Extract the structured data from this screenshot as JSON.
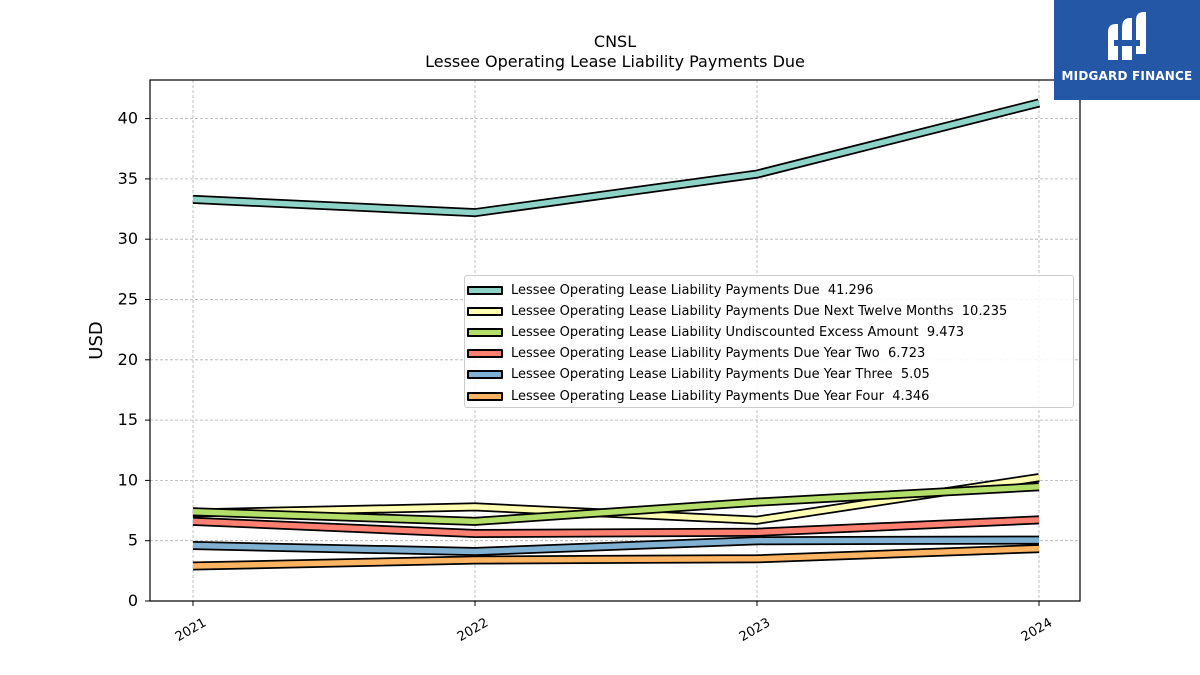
{
  "header": {
    "ticker": "CNSL",
    "subtitle": "Lessee Operating Lease Liability Payments Due"
  },
  "logo": {
    "text": "MIDGARD FINANCE",
    "color": "#2557a7"
  },
  "chart_data": {
    "type": "line",
    "title": "CNSL",
    "subtitle": "Lessee Operating Lease Liability Payments Due",
    "xlabel": "",
    "ylabel": "USD",
    "categories": [
      "2021",
      "2022",
      "2023",
      "2024"
    ],
    "ylim": [
      0,
      43.2
    ],
    "yticks": [
      0,
      5,
      10,
      15,
      20,
      25,
      30,
      35,
      40
    ],
    "grid": true,
    "legend_position": "center-right",
    "series": [
      {
        "name": "Lessee Operating Lease Liability Payments Due",
        "last_value": "41.296",
        "values": [
          33.3,
          32.2,
          35.4,
          41.296
        ],
        "color": "#8dd3c7"
      },
      {
        "name": "Lessee Operating Lease Liability Payments Due Next Twelve Months",
        "last_value": "10.235",
        "values": [
          7.3,
          7.8,
          6.7,
          10.235
        ],
        "color": "#ffffb3"
      },
      {
        "name": "Lessee Operating Lease Liability Undiscounted Excess Amount",
        "last_value": "9.473",
        "values": [
          7.4,
          6.6,
          8.2,
          9.473
        ],
        "color": "#b3de69"
      },
      {
        "name": "Lessee Operating Lease Liability Payments Due Year Two",
        "last_value": "6.723",
        "values": [
          6.6,
          5.6,
          5.7,
          6.723
        ],
        "color": "#fb8072"
      },
      {
        "name": "Lessee Operating Lease Liability Payments Due Year Three",
        "last_value": "5.05",
        "values": [
          4.6,
          4.1,
          5.0,
          5.05
        ],
        "color": "#80b1d3"
      },
      {
        "name": "Lessee Operating Lease Liability Payments Due Year Four",
        "last_value": "4.346",
        "values": [
          2.9,
          3.4,
          3.5,
          4.346
        ],
        "color": "#fdb462"
      }
    ]
  }
}
